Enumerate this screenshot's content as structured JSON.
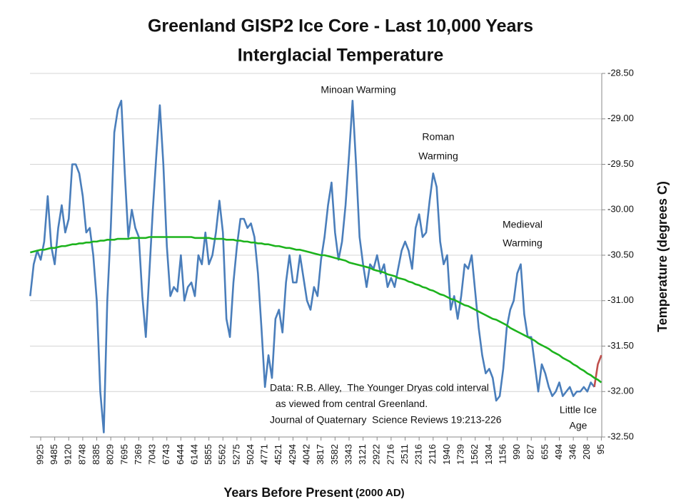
{
  "chart_data": {
    "type": "line",
    "title": [
      "Greenland GISP2 Ice Core - Last 10,000 Years",
      "Interglacial Temperature"
    ],
    "xlabel": "Years Before Present",
    "xlabel_note": "(2000 AD)",
    "ylabel": "Temperature (degrees C)",
    "y_axis_side": "right",
    "grid": true,
    "categories": [
      null,
      null,
      null,
      "9925",
      null,
      null,
      null,
      "9485",
      null,
      null,
      null,
      "9120",
      null,
      null,
      null,
      "8748",
      null,
      null,
      null,
      "8385",
      null,
      null,
      null,
      "8029",
      null,
      null,
      null,
      "7695",
      null,
      null,
      null,
      "7369",
      null,
      null,
      null,
      "7043",
      null,
      null,
      null,
      "6743",
      null,
      null,
      null,
      "6444",
      null,
      null,
      null,
      "6144",
      null,
      null,
      null,
      "5855",
      null,
      null,
      null,
      "5562",
      null,
      null,
      null,
      "5275",
      null,
      null,
      null,
      "5024",
      null,
      null,
      null,
      "4771",
      null,
      null,
      null,
      "4521",
      null,
      null,
      null,
      "4294",
      null,
      null,
      null,
      "4042",
      null,
      null,
      null,
      "3817",
      null,
      null,
      null,
      "3582",
      null,
      null,
      null,
      "3343",
      null,
      null,
      null,
      "3121",
      null,
      null,
      null,
      "2922",
      null,
      null,
      null,
      "2716",
      null,
      null,
      null,
      "2511",
      null,
      null,
      null,
      "2316",
      null,
      null,
      null,
      "2116",
      null,
      null,
      null,
      "1940",
      null,
      null,
      null,
      "1739",
      null,
      null,
      null,
      "1562",
      null,
      null,
      null,
      "1304",
      null,
      null,
      null,
      "1156",
      null,
      null,
      null,
      "990",
      null,
      null,
      null,
      "827",
      null,
      null,
      null,
      "655",
      null,
      null,
      null,
      "494",
      null,
      null,
      null,
      "346",
      null,
      null,
      null,
      "208",
      null,
      null,
      null,
      "95"
    ],
    "series": [
      {
        "color": "#4a7ebb",
        "values": [
          -30.95,
          -30.6,
          -30.45,
          -30.55,
          -30.35,
          -29.85,
          -30.4,
          -30.6,
          -30.2,
          -29.95,
          -30.25,
          -30.1,
          -29.5,
          -29.5,
          -29.6,
          -29.85,
          -30.25,
          -30.2,
          -30.5,
          -31.0,
          -32.0,
          -32.45,
          -31.0,
          -30.2,
          -29.15,
          -28.9,
          -28.8,
          -29.6,
          -30.3,
          -30.0,
          -30.2,
          -30.3,
          -30.95,
          -31.4,
          -30.7,
          -30.0,
          -29.4,
          -28.85,
          -29.5,
          -30.4,
          -30.95,
          -30.85,
          -30.9,
          -30.5,
          -31.0,
          -30.85,
          -30.8,
          -30.95,
          -30.5,
          -30.6,
          -30.25,
          -30.6,
          -30.5,
          -30.25,
          -29.9,
          -30.25,
          -31.2,
          -31.4,
          -30.8,
          -30.4,
          -30.1,
          -30.1,
          -30.2,
          -30.15,
          -30.3,
          -30.7,
          -31.3,
          -31.95,
          -31.6,
          -31.85,
          -31.2,
          -31.1,
          -31.35,
          -30.8,
          -30.5,
          -30.8,
          -30.8,
          -30.5,
          -30.75,
          -31.0,
          -31.1,
          -30.85,
          -30.95,
          -30.55,
          -30.3,
          -29.95,
          -29.7,
          -30.25,
          -30.55,
          -30.35,
          -29.95,
          -29.4,
          -28.8,
          -29.5,
          -30.3,
          -30.6,
          -30.85,
          -30.6,
          -30.65,
          -30.5,
          -30.7,
          -30.6,
          -30.85,
          -30.75,
          -30.85,
          -30.65,
          -30.45,
          -30.35,
          -30.45,
          -30.65,
          -30.2,
          -30.05,
          -30.3,
          -30.25,
          -29.9,
          -29.6,
          -29.75,
          -30.35,
          -30.6,
          -30.5,
          -31.1,
          -30.95,
          -31.2,
          -30.95,
          -30.6,
          -30.65,
          -30.5,
          -30.9,
          -31.3,
          -31.6,
          -31.8,
          -31.75,
          -31.85,
          -32.1,
          -32.05,
          -31.75,
          -31.3,
          -31.1,
          -31.0,
          -30.7,
          -30.6,
          -31.15,
          -31.4,
          -31.4,
          -31.7,
          -32.0,
          -31.7,
          -31.8,
          -31.95,
          -32.05,
          -32.0,
          -31.9,
          -32.05,
          -32.0,
          -31.95,
          -32.05,
          -32.0,
          -32.0,
          -31.95,
          -32.0,
          -31.9,
          -31.95,
          null,
          null
        ]
      },
      {
        "color": "#c0504d",
        "values": [
          null,
          null,
          null,
          null,
          null,
          null,
          null,
          null,
          null,
          null,
          null,
          null,
          null,
          null,
          null,
          null,
          null,
          null,
          null,
          null,
          null,
          null,
          null,
          null,
          null,
          null,
          null,
          null,
          null,
          null,
          null,
          null,
          null,
          null,
          null,
          null,
          null,
          null,
          null,
          null,
          null,
          null,
          null,
          null,
          null,
          null,
          null,
          null,
          null,
          null,
          null,
          null,
          null,
          null,
          null,
          null,
          null,
          null,
          null,
          null,
          null,
          null,
          null,
          null,
          null,
          null,
          null,
          null,
          null,
          null,
          null,
          null,
          null,
          null,
          null,
          null,
          null,
          null,
          null,
          null,
          null,
          null,
          null,
          null,
          null,
          null,
          null,
          null,
          null,
          null,
          null,
          null,
          null,
          null,
          null,
          null,
          null,
          null,
          null,
          null,
          null,
          null,
          null,
          null,
          null,
          null,
          null,
          null,
          null,
          null,
          null,
          null,
          null,
          null,
          null,
          null,
          null,
          null,
          null,
          null,
          null,
          null,
          null,
          null,
          null,
          null,
          null,
          null,
          null,
          null,
          null,
          null,
          null,
          null,
          null,
          null,
          null,
          null,
          null,
          null,
          null,
          null,
          null,
          null,
          null,
          null,
          null,
          null,
          null,
          null,
          null,
          null,
          null,
          null,
          null,
          null,
          null,
          null,
          null,
          null,
          null,
          -31.95,
          -31.7,
          -31.6
        ]
      },
      {
        "color": "#1db31d",
        "values": [
          -30.47,
          -30.46,
          -30.45,
          -30.44,
          -30.44,
          -30.43,
          -30.42,
          -30.42,
          -30.41,
          -30.4,
          -30.4,
          -30.39,
          -30.38,
          -30.38,
          -30.37,
          -30.37,
          -30.36,
          -30.36,
          -30.35,
          -30.35,
          -30.34,
          -30.34,
          -30.33,
          -30.33,
          -30.33,
          -30.32,
          -30.32,
          -30.32,
          -30.32,
          -30.31,
          -30.31,
          -30.31,
          -30.31,
          -30.31,
          -30.3,
          -30.3,
          -30.3,
          -30.3,
          -30.3,
          -30.3,
          -30.3,
          -30.3,
          -30.3,
          -30.3,
          -30.3,
          -30.3,
          -30.3,
          -30.31,
          -30.31,
          -30.31,
          -30.31,
          -30.31,
          -30.32,
          -30.32,
          -30.32,
          -30.32,
          -30.33,
          -30.33,
          -30.33,
          -30.34,
          -30.34,
          -30.35,
          -30.35,
          -30.36,
          -30.36,
          -30.37,
          -30.37,
          -30.38,
          -30.38,
          -30.39,
          -30.4,
          -30.4,
          -30.41,
          -30.42,
          -30.42,
          -30.43,
          -30.44,
          -30.44,
          -30.45,
          -30.46,
          -30.47,
          -30.48,
          -30.49,
          -30.5,
          -30.5,
          -30.51,
          -30.52,
          -30.53,
          -30.54,
          -30.55,
          -30.56,
          -30.58,
          -30.59,
          -30.6,
          -30.61,
          -30.62,
          -30.63,
          -30.64,
          -30.66,
          -30.67,
          -30.68,
          -30.69,
          -30.71,
          -30.72,
          -30.73,
          -30.75,
          -30.76,
          -30.77,
          -30.79,
          -30.8,
          -30.82,
          -30.83,
          -30.85,
          -30.86,
          -30.88,
          -30.89,
          -30.91,
          -30.93,
          -30.94,
          -30.96,
          -30.98,
          -30.99,
          -31.01,
          -31.03,
          -31.05,
          -31.06,
          -31.08,
          -31.1,
          -31.12,
          -31.14,
          -31.16,
          -31.18,
          -31.2,
          -31.21,
          -31.23,
          -31.25,
          -31.27,
          -31.3,
          -31.32,
          -31.34,
          -31.36,
          -31.38,
          -31.4,
          -31.42,
          -31.44,
          -31.47,
          -31.49,
          -31.51,
          -31.53,
          -31.56,
          -31.58,
          -31.6,
          -31.63,
          -31.65,
          -31.67,
          -31.7,
          -31.72,
          -31.75,
          -31.77,
          -31.8,
          -31.82,
          -31.85,
          -31.87,
          -31.9
        ]
      }
    ],
    "ylim": [
      -32.5,
      -28.5
    ],
    "yticks": [
      {
        "value": -28.5,
        "label": "-28.50"
      },
      {
        "value": -29,
        "label": "-29.00"
      },
      {
        "value": -29.5,
        "label": "-29.50"
      },
      {
        "value": -30,
        "label": "-30.00"
      },
      {
        "value": -30.5,
        "label": "-30.50"
      },
      {
        "value": -31,
        "label": "-31.00"
      },
      {
        "value": -31.5,
        "label": "-31.50"
      },
      {
        "value": -32,
        "label": "-32.00"
      },
      {
        "value": -32.5,
        "label": "-32.50"
      }
    ],
    "annotations": [
      [
        "Minoan Warming"
      ],
      [
        "Roman",
        "Warming"
      ],
      [
        "Medieval",
        "Warming"
      ],
      [
        "Little Ice",
        "Age"
      ],
      [
        "Data: R.B. Alley,  The Younger Dryas cold interval",
        " as viewed from central Greenland.",
        "Journal of Quaternary  Science Reviews 19:213-226"
      ]
    ]
  }
}
